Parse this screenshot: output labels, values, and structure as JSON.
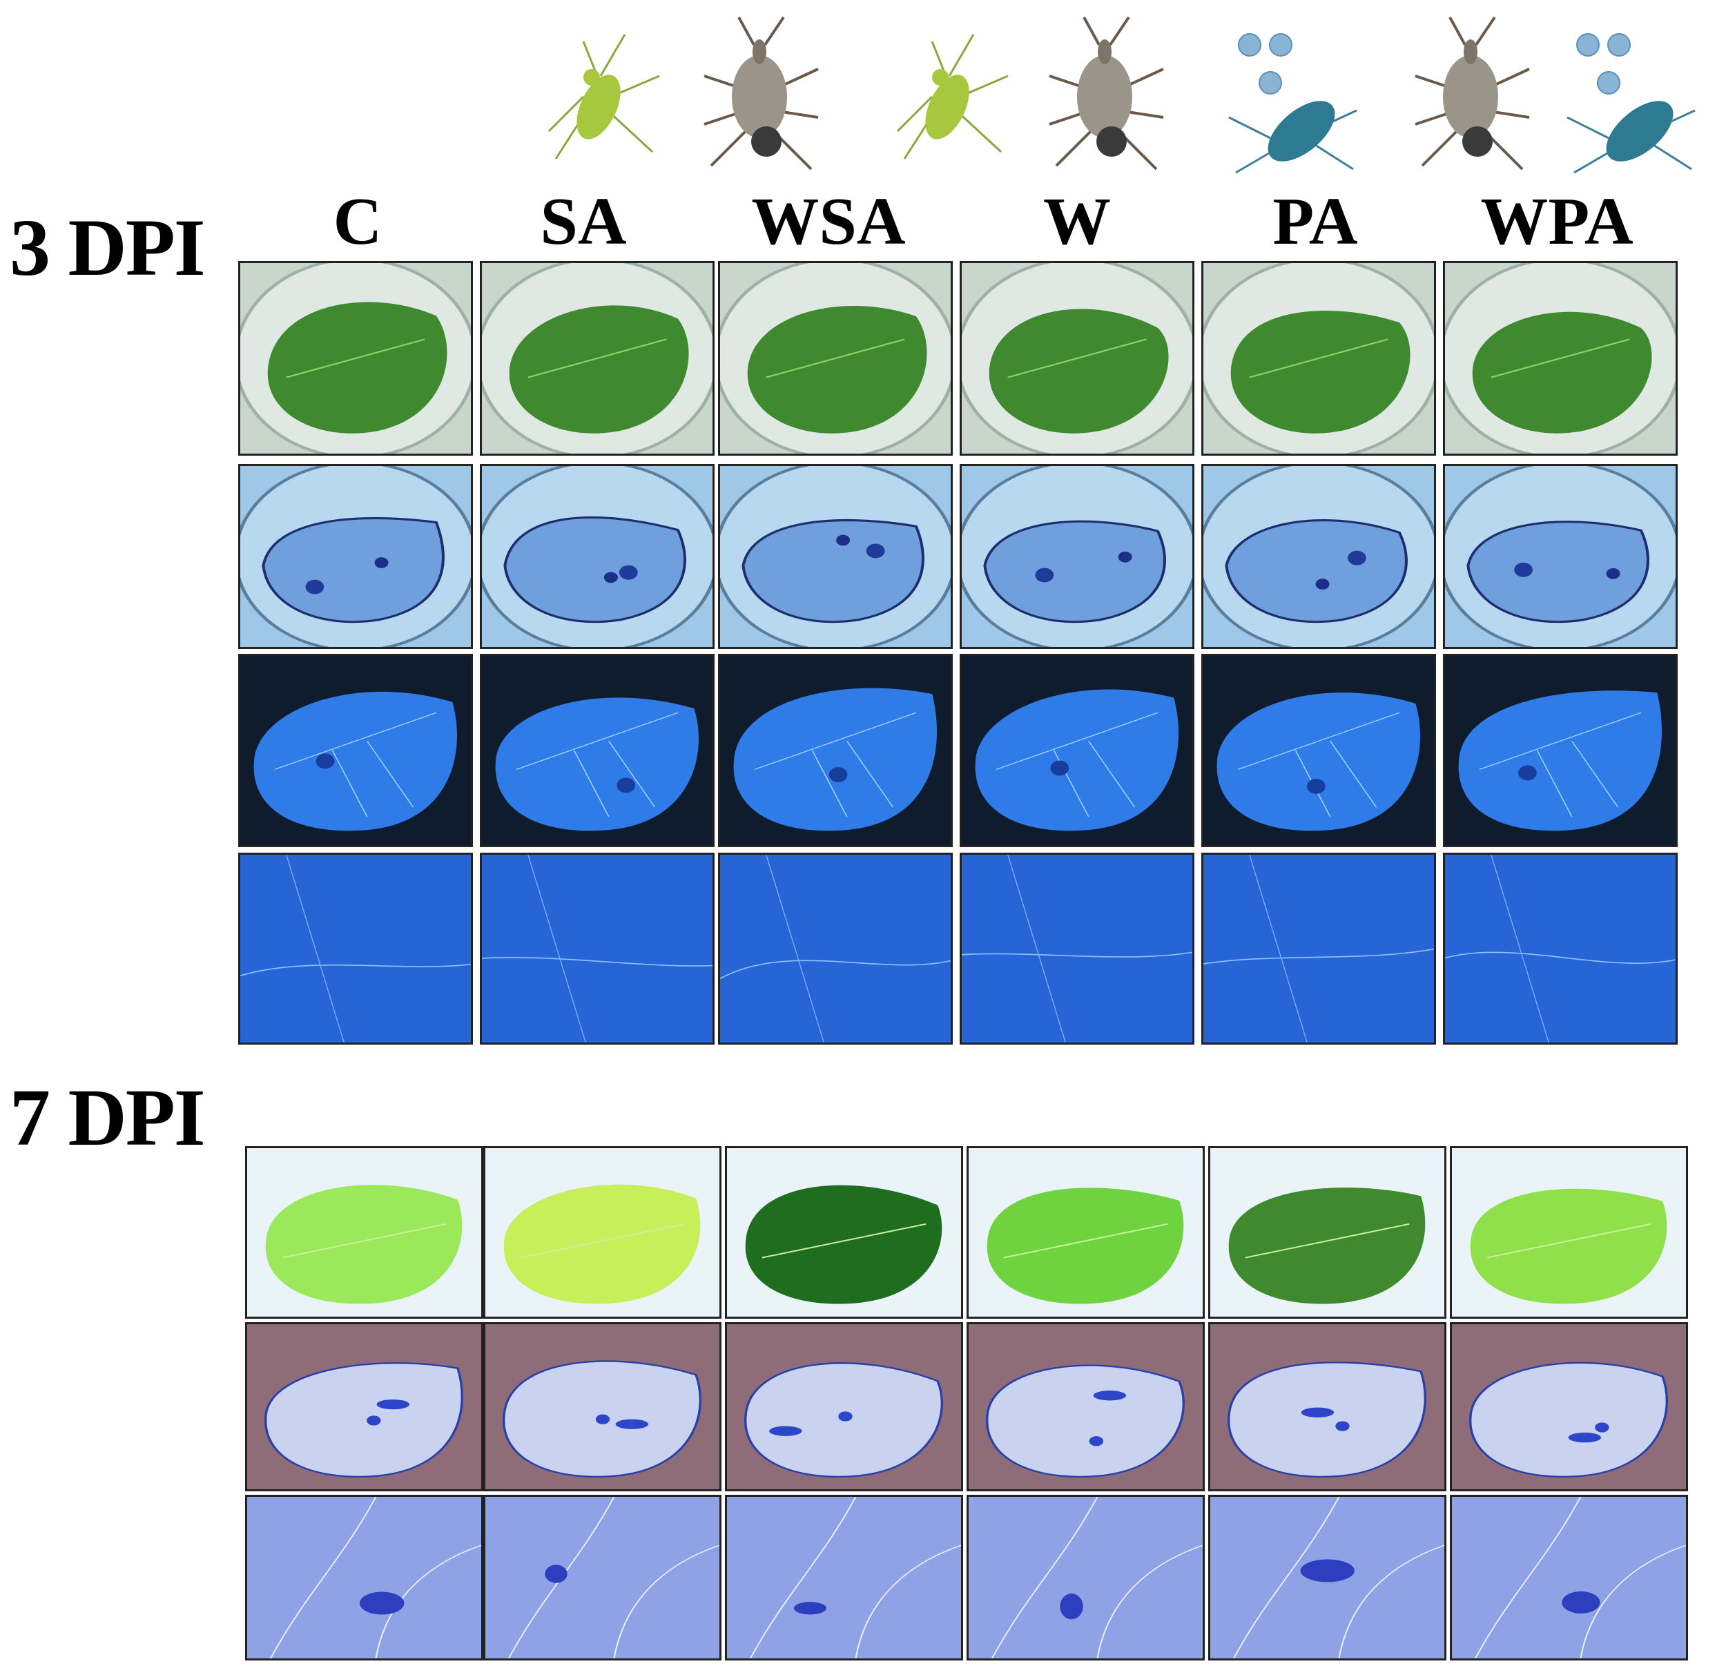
{
  "labels": {
    "dpi_3": "3 DPI",
    "dpi_7": "7 DPI"
  },
  "columns": [
    "C",
    "SA",
    "WSA",
    "W",
    "PA",
    "WPA"
  ],
  "header_icons": [
    "aphid-icon",
    "weevil-icon",
    "aphid-icon",
    "weevil-icon",
    "virus-aphid-icon",
    "weevil-icon",
    "virus-aphid-icon"
  ],
  "colors": {
    "leaf_green": "#3f8a2f",
    "stain_blue": "#2d5fd6",
    "dark_bg": "#0f1c2e",
    "fluor_blue": "#2f7be8"
  }
}
